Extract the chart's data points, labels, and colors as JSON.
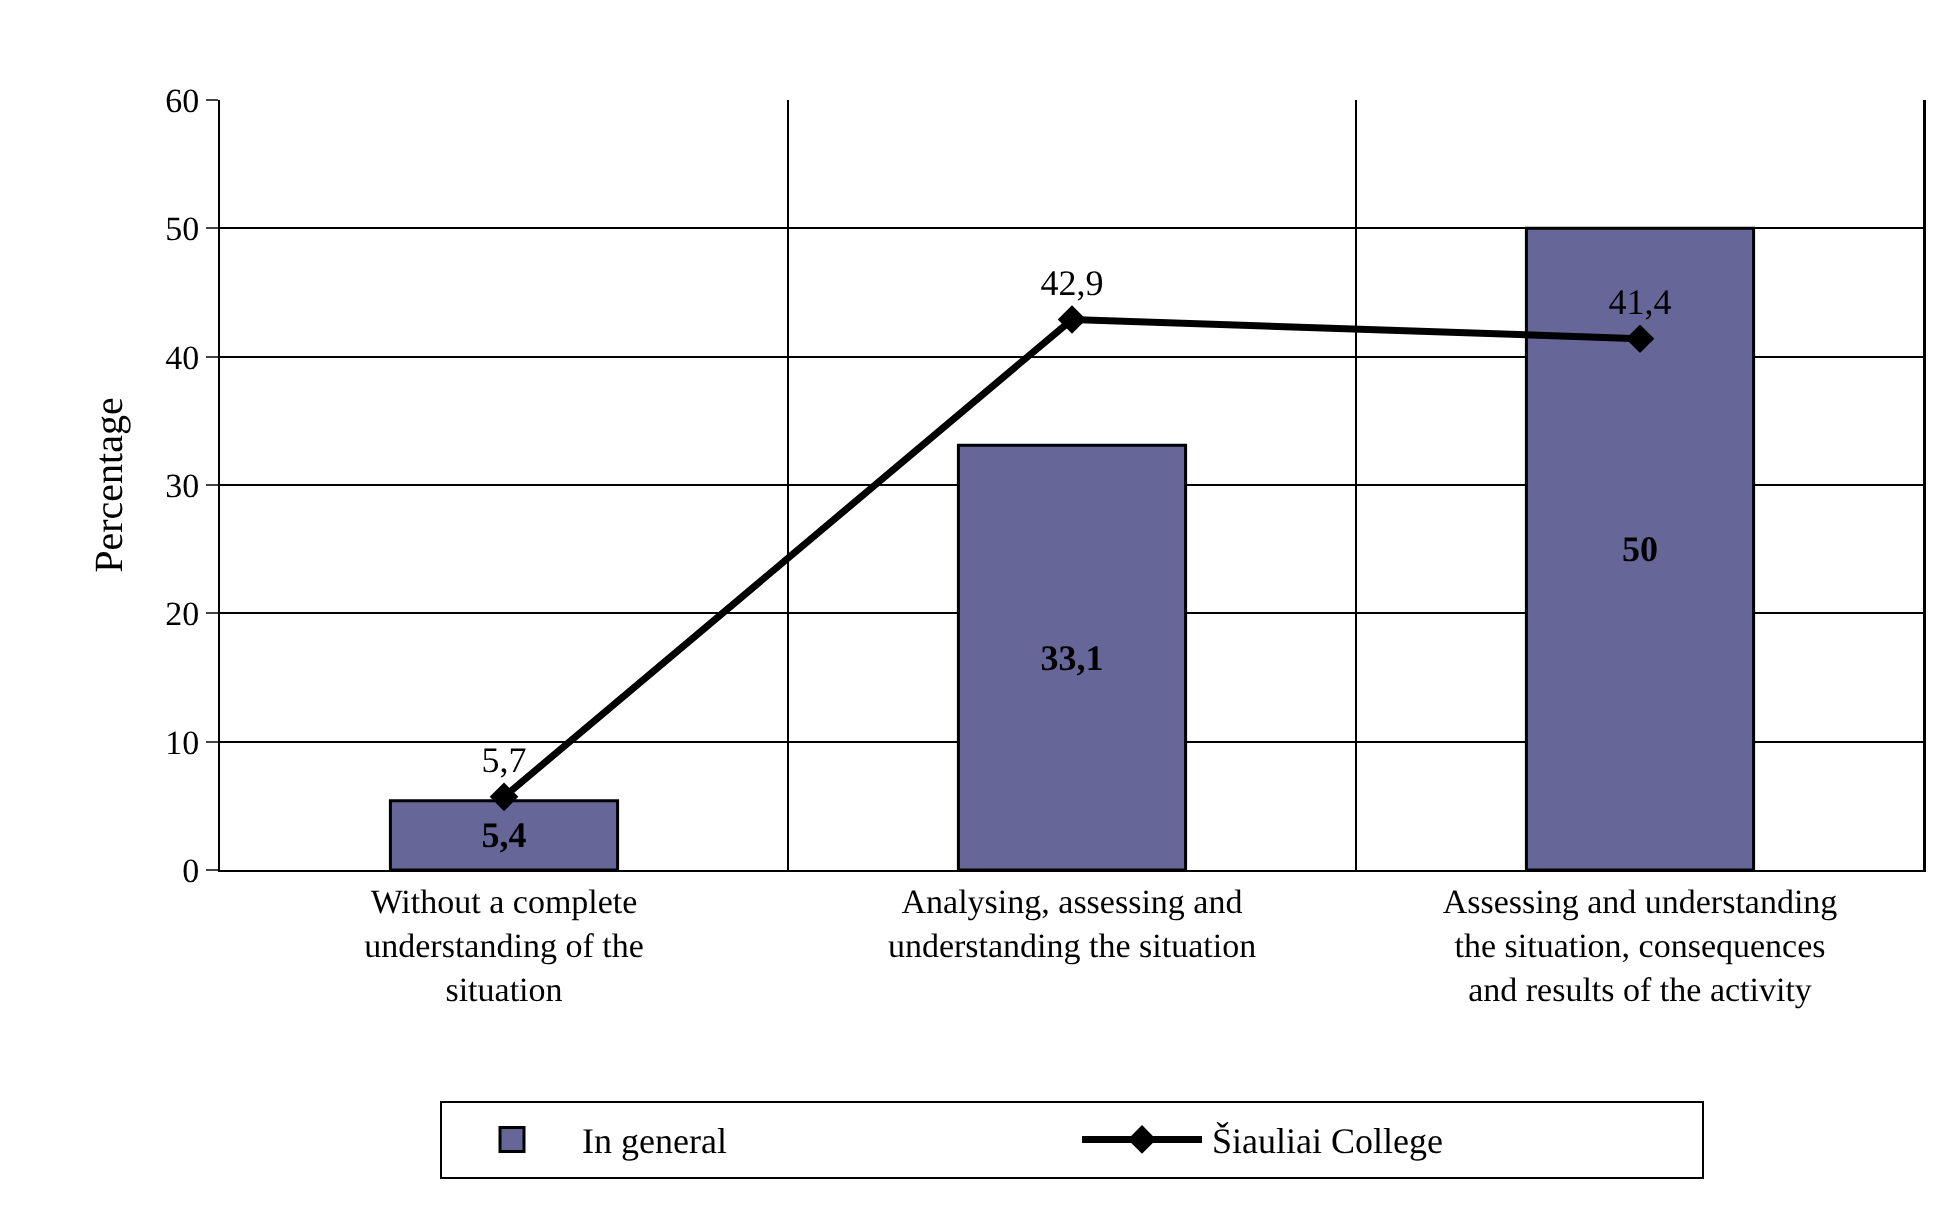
{
  "chart_data": {
    "type": "bar",
    "ylabel": "Percentage",
    "categories": [
      "Without a complete understanding of the situation",
      "Analysing, assessing and understanding the situation",
      "Assessing and understanding the situation, consequences and results of the activity"
    ],
    "series": [
      {
        "name": "In general",
        "color": "#666699",
        "values": [
          5.4,
          33.1,
          50
        ],
        "value_labels": [
          "5,4",
          "33,1",
          "50"
        ]
      },
      {
        "name": "Šiauliai College",
        "type": "line",
        "color": "#000000",
        "values": [
          5.7,
          42.9,
          41.4
        ],
        "value_labels": [
          "5,7",
          "42,9",
          "41,4"
        ],
        "marker": "diamond",
        "line_style": "solid"
      }
    ],
    "ylim": [
      0,
      60
    ],
    "yticks": [
      0,
      10,
      20,
      30,
      40,
      50,
      60
    ],
    "grid": true,
    "legend": "bottom"
  }
}
